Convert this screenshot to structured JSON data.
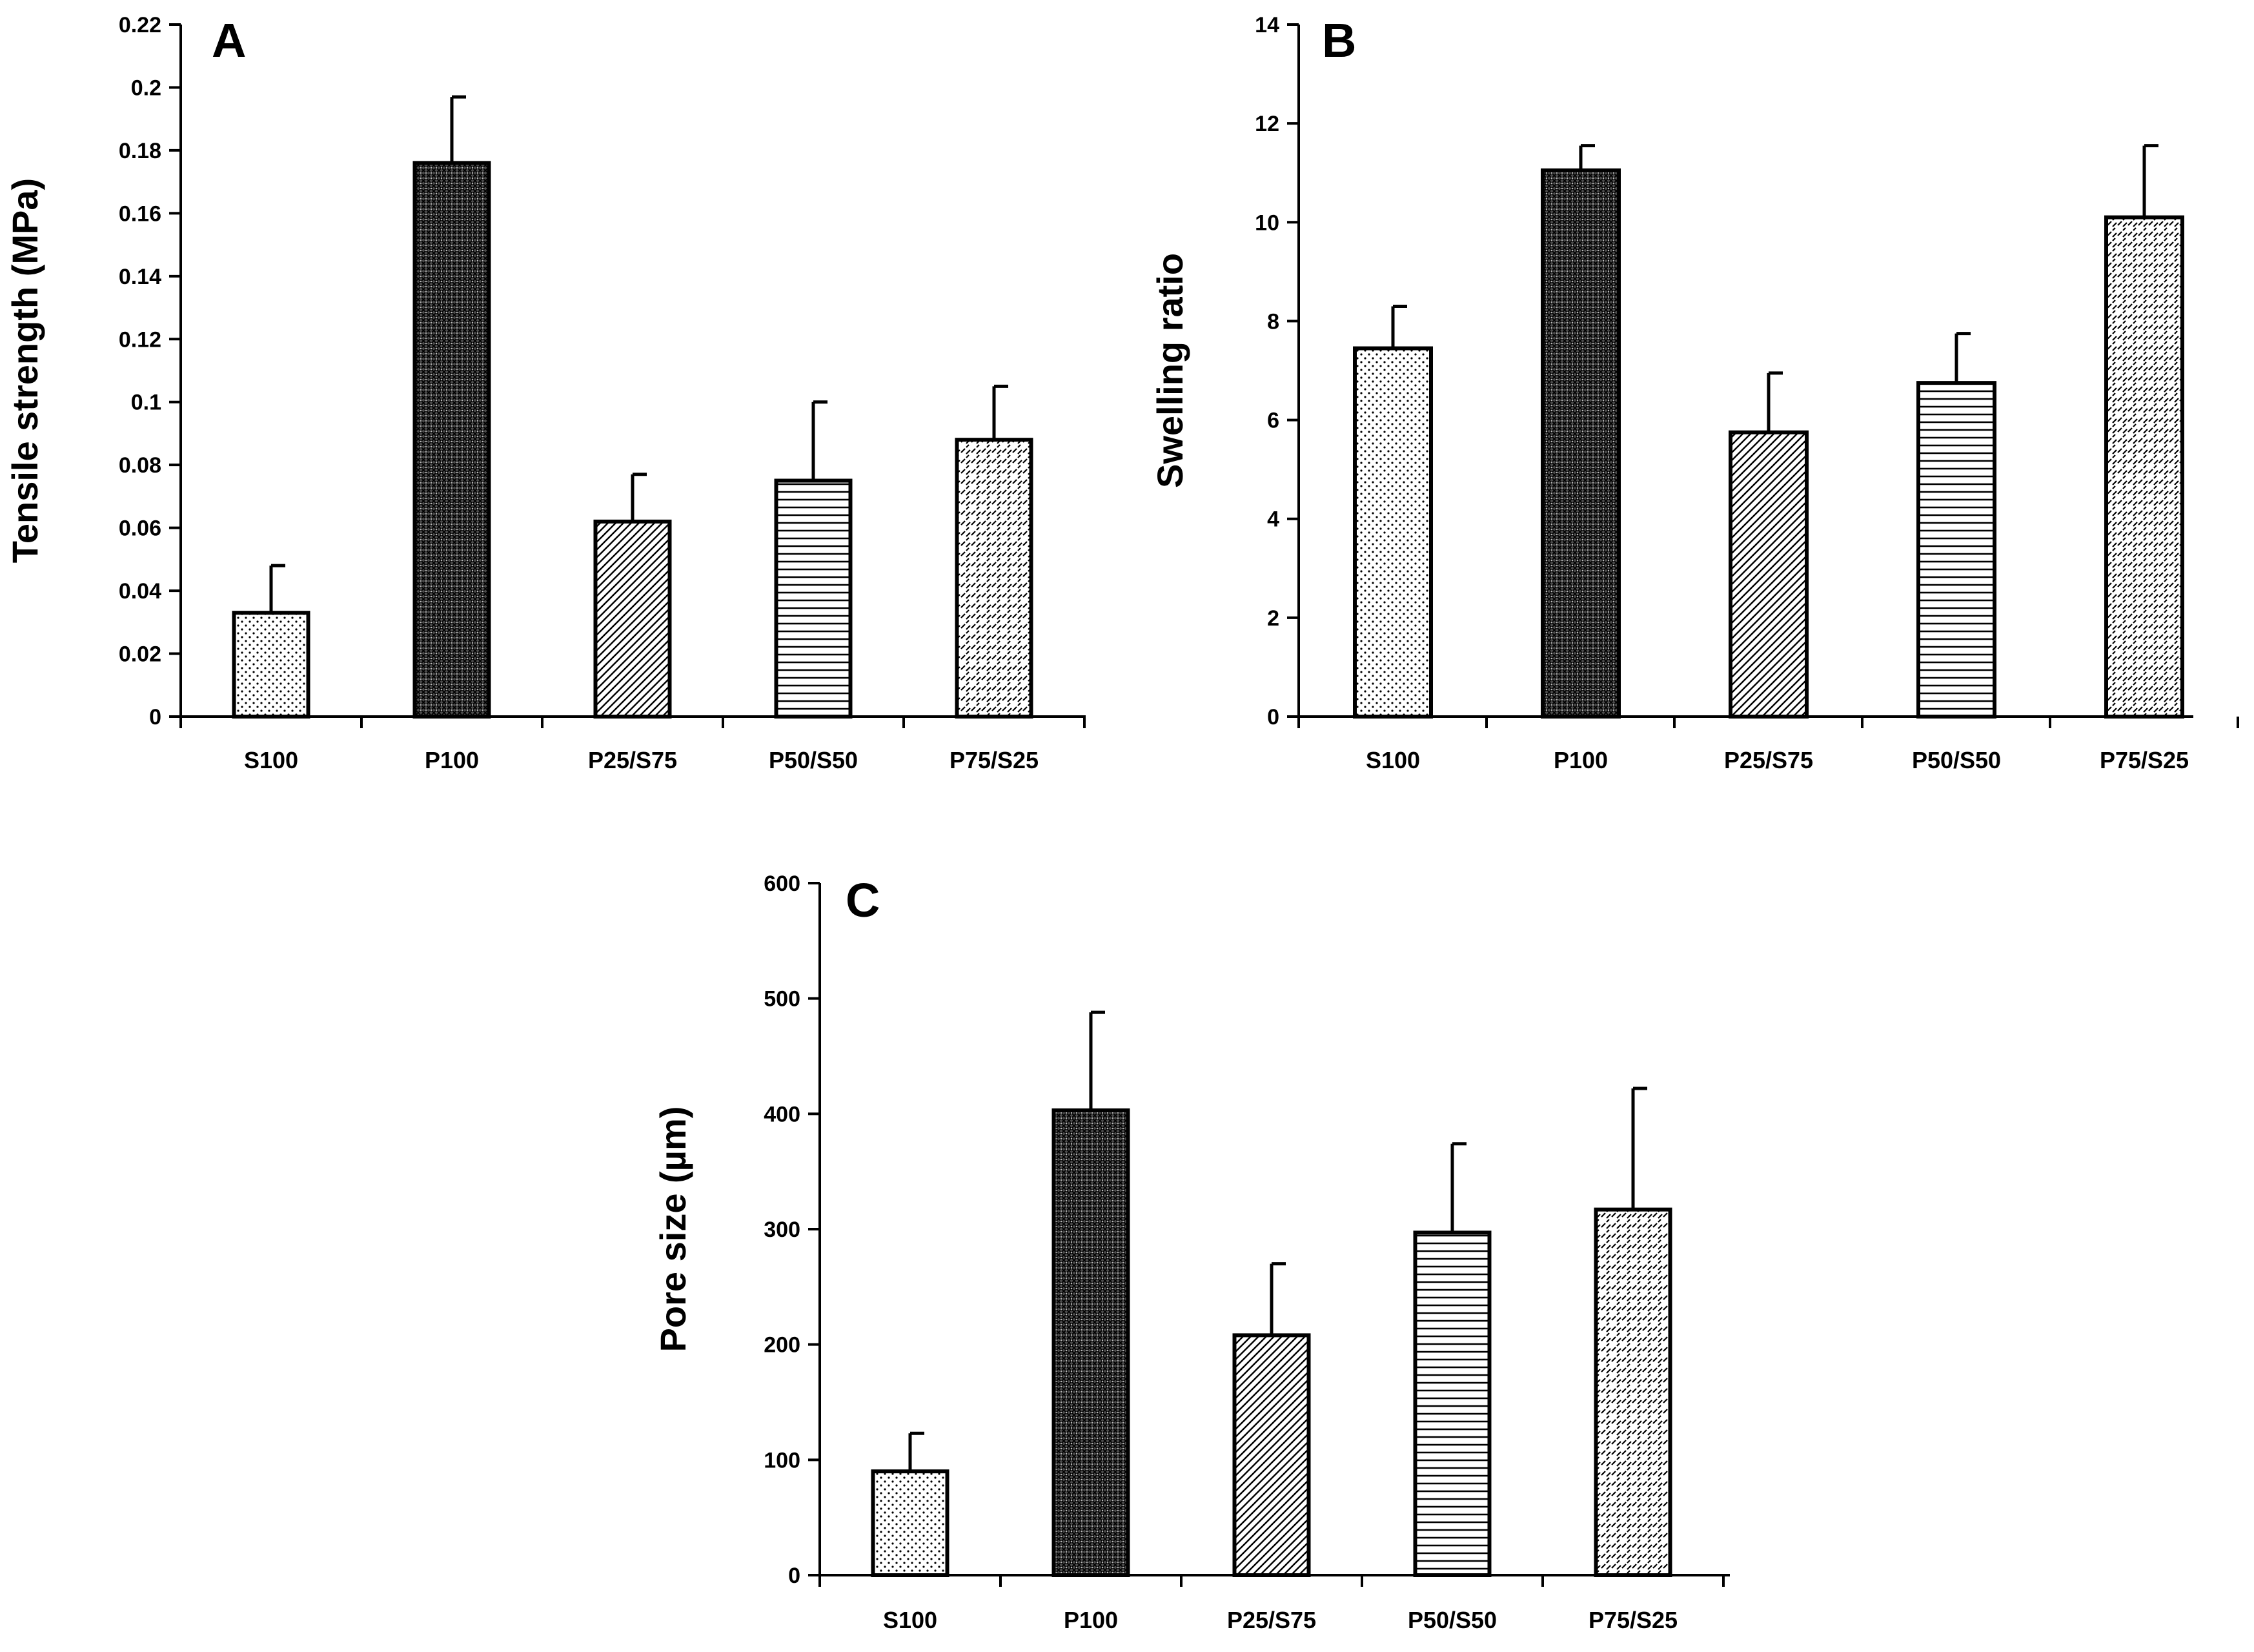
{
  "chart_data": [
    {
      "type": "bar",
      "panel": "A",
      "title": "",
      "xlabel": "",
      "ylabel": "Tensile strength (MPa)",
      "categories": [
        "S100",
        "P100",
        "P25/S75",
        "P50/S50",
        "P75/S25"
      ],
      "values": [
        0.033,
        0.176,
        0.062,
        0.075,
        0.088
      ],
      "errors": [
        0.015,
        0.021,
        0.015,
        0.025,
        0.017
      ],
      "patterns": [
        "dots",
        "crosshatch",
        "diag",
        "hlines",
        "dashdiag"
      ],
      "ylim": [
        0,
        0.22
      ],
      "yticks": [
        "0",
        "0.02",
        "0.04",
        "0.06",
        "0.08",
        "0.1",
        "0.12",
        "0.14",
        "0.16",
        "0.18",
        "0.2",
        "0.22"
      ],
      "grid": false,
      "legend": "none"
    },
    {
      "type": "bar",
      "panel": "B",
      "title": "",
      "xlabel": "",
      "ylabel": "Swelling ratio",
      "categories": [
        "S100",
        "P100",
        "P25/S75",
        "P50/S50",
        "P75/S25"
      ],
      "values": [
        7.45,
        11.05,
        5.75,
        6.75,
        10.1
      ],
      "errors": [
        0.85,
        0.5,
        1.2,
        1.0,
        1.45
      ],
      "patterns": [
        "dots",
        "crosshatch",
        "diag",
        "hlines",
        "dashdiag"
      ],
      "ylim": [
        0,
        14
      ],
      "yticks": [
        "0",
        "2",
        "4",
        "6",
        "8",
        "10",
        "12",
        "14"
      ],
      "grid": false,
      "legend": "none"
    },
    {
      "type": "bar",
      "panel": "C",
      "title": "",
      "xlabel": "",
      "ylabel": "Pore size (µm)",
      "categories": [
        "S100",
        "P100",
        "P25/S75",
        "P50/S50",
        "P75/S25"
      ],
      "values": [
        90,
        403,
        208,
        297,
        317
      ],
      "errors": [
        33,
        85,
        62,
        77,
        105
      ],
      "patterns": [
        "dots",
        "crosshatch",
        "diag",
        "hlines",
        "dashdiag"
      ],
      "ylim": [
        0,
        600
      ],
      "yticks": [
        "0",
        "100",
        "200",
        "300",
        "400",
        "500",
        "600"
      ],
      "grid": false,
      "legend": "none"
    }
  ]
}
